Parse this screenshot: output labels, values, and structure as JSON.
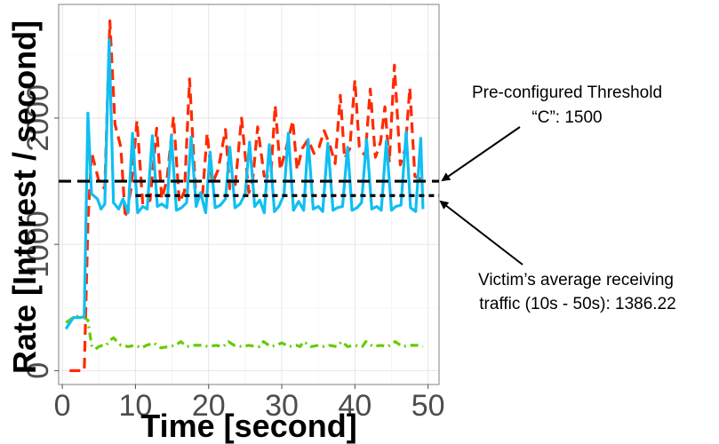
{
  "chart_data": {
    "type": "line",
    "title": "",
    "xlabel": "Time [second]",
    "ylabel": "Rate [Interest / second]",
    "xlim": [
      -0.5,
      51.5
    ],
    "ylim": [
      -110,
      2900
    ],
    "x_ticks": [
      0,
      10,
      20,
      30,
      40,
      50
    ],
    "y_ticks": [
      0,
      1000,
      2000
    ],
    "grid": true,
    "legend": "none",
    "colors": {
      "red_dashed": "#ff2a00",
      "blue_solid": "#0fbff2",
      "green_dashdot": "#66cc00",
      "threshold": "#000000",
      "grid": "#e6e6e6",
      "panel_border": "#808080"
    },
    "series": [
      {
        "style": "dashed",
        "color": "#ff2a00",
        "x": [
          1,
          2,
          3,
          3.5,
          4,
          5,
          5.8,
          6.5,
          7.2,
          8,
          8.6,
          9.4,
          10.2,
          11,
          12,
          12.9,
          13.6,
          14.3,
          15.2,
          16,
          16.7,
          17.4,
          18.3,
          19.2,
          19.8,
          20.5,
          21.3,
          22.3,
          22.9,
          23.6,
          24.5,
          25.5,
          26,
          26.7,
          27.6,
          28.5,
          29.1,
          29.8,
          30.6,
          31.5,
          32.1,
          32.8,
          33.6,
          34.4,
          35.1,
          35.8,
          36.6,
          37.3,
          38,
          38.6,
          39.3,
          40,
          40.6,
          41.4,
          42.1,
          42.8,
          43.5,
          44.1,
          44.7,
          45.4,
          46.2,
          46.9,
          47.5,
          48.2,
          49.2
        ],
        "y": [
          0,
          0,
          0,
          1160,
          1730,
          1500,
          1440,
          2770,
          1950,
          1770,
          1210,
          1440,
          1980,
          1310,
          1350,
          1920,
          1360,
          1510,
          2010,
          1330,
          1420,
          2310,
          1330,
          1410,
          1880,
          1480,
          1590,
          1910,
          1440,
          1450,
          2000,
          1410,
          1490,
          1930,
          1540,
          1540,
          2100,
          1590,
          1760,
          1980,
          1590,
          1760,
          1830,
          1720,
          1770,
          1900,
          1780,
          1640,
          2180,
          1680,
          1760,
          2300,
          1770,
          1700,
          2230,
          1690,
          1810,
          2090,
          1650,
          2420,
          1630,
          1760,
          2240,
          1540,
          1510
        ]
      },
      {
        "style": "solid",
        "color": "#0fbff2",
        "x": [
          0.5,
          1.5,
          2.5,
          3,
          3.5,
          4,
          4.8,
          5.3,
          5.8,
          6.4,
          7,
          7.7,
          8.3,
          9,
          9.6,
          10.3,
          11,
          11.6,
          12.3,
          13,
          13.6,
          14.3,
          14.9,
          15.6,
          16.3,
          17,
          17.6,
          18.3,
          18.9,
          19.6,
          20.2,
          20.9,
          21.6,
          22.3,
          22.9,
          23.6,
          24.3,
          25,
          25.6,
          26.3,
          27,
          27.6,
          28.3,
          29,
          29.6,
          30.3,
          30.9,
          31.6,
          32.3,
          33,
          33.6,
          34.3,
          35,
          35.6,
          36.3,
          37,
          37.6,
          38.3,
          39,
          39.6,
          40.3,
          40.9,
          41.6,
          42.3,
          43,
          43.6,
          44.3,
          45,
          45.6,
          46.3,
          47,
          47.6,
          48.3,
          49,
          49.3
        ],
        "y": [
          330,
          420,
          420,
          430,
          2040,
          1400,
          1360,
          1280,
          1320,
          2620,
          1330,
          1280,
          1360,
          1250,
          1880,
          1250,
          1300,
          1280,
          1860,
          1300,
          1320,
          1290,
          1860,
          1270,
          1290,
          1330,
          1850,
          1300,
          1410,
          1250,
          1730,
          1290,
          1310,
          1360,
          1770,
          1290,
          1320,
          1400,
          1810,
          1300,
          1350,
          1250,
          1790,
          1260,
          1300,
          1390,
          1880,
          1270,
          1340,
          1270,
          1830,
          1280,
          1300,
          1260,
          1800,
          1270,
          1290,
          1300,
          1770,
          1270,
          1290,
          1330,
          1830,
          1280,
          1300,
          1270,
          1820,
          1270,
          1300,
          1310,
          1890,
          1290,
          1260,
          1840,
          1280
        ]
      },
      {
        "style": "dashdot",
        "color": "#66cc00",
        "x": [
          0.5,
          1,
          1.5,
          2,
          2.5,
          3,
          3.5,
          4,
          4.5,
          5,
          5.5,
          6,
          6.5,
          7,
          8,
          9,
          10,
          10.8,
          11.5,
          12.5,
          13.5,
          14.5,
          15.5,
          16.2,
          17,
          18,
          19,
          20,
          21,
          22,
          22.7,
          23.5,
          24.5,
          25.5,
          26.5,
          27,
          27.5,
          28.5,
          29.2,
          30,
          31,
          32,
          32.5,
          33,
          34,
          35,
          35.8,
          36.5,
          37.5,
          38.2,
          39,
          40,
          41,
          41.5,
          42.5,
          43.5,
          44.5,
          45.5,
          46.5,
          47.5,
          48.5,
          49.3
        ],
        "y": [
          380,
          400,
          420,
          430,
          430,
          420,
          400,
          200,
          170,
          190,
          200,
          200,
          240,
          260,
          200,
          190,
          200,
          180,
          200,
          220,
          180,
          190,
          200,
          230,
          190,
          200,
          200,
          190,
          200,
          190,
          230,
          200,
          190,
          200,
          190,
          190,
          230,
          190,
          200,
          220,
          190,
          200,
          190,
          230,
          190,
          200,
          190,
          200,
          190,
          230,
          190,
          200,
          190,
          230,
          190,
          200,
          190,
          230,
          190,
          200,
          200,
          190
        ]
      }
    ],
    "threshold_lines": [
      {
        "value": 1500,
        "style": "dashed",
        "x_start": -0.5,
        "x_end": 51.5
      },
      {
        "value": 1386.22,
        "style": "dotted",
        "x_start": 10,
        "x_end": 51.5
      }
    ],
    "annotations": [
      {
        "lines": [
          "Pre-configured Threshold",
          "“C”: 1500"
        ]
      },
      {
        "lines": [
          "Victim’s average receiving",
          "traffic (10s - 50s): 1386.22"
        ]
      }
    ]
  }
}
